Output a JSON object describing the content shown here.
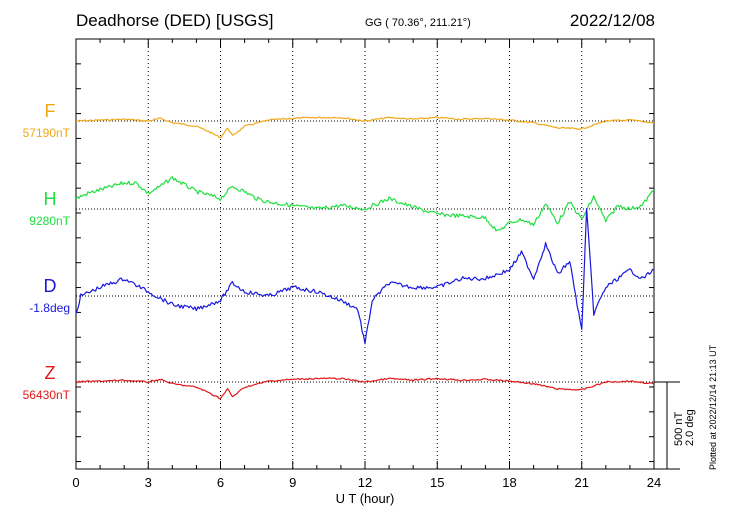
{
  "header": {
    "station": "Deadhorse (DED)  [USGS]",
    "coords": "GG ( 70.36°, 211.21°)",
    "date": "2022/12/08"
  },
  "plotted_note": "Plotted at 2022/12/14 21:13 UT",
  "scale": {
    "nt": "500 nT",
    "deg": "2.0 deg"
  },
  "chart_data": {
    "type": "line",
    "xlabel": "U T (hour)",
    "xlim": [
      0,
      24
    ],
    "xticks": [
      0,
      3,
      6,
      9,
      12,
      15,
      18,
      21,
      24
    ],
    "tick_labels": [
      "0",
      "3",
      "6",
      "9",
      "12",
      "15",
      "18",
      "21",
      "24"
    ],
    "grid": "vertical dotted lines every 3 hours",
    "scale_bar": {
      "nT": 500,
      "deg": 2.0
    },
    "series": [
      {
        "name": "F",
        "baseline": "57190nT",
        "color": "#f0a818",
        "x": [
          0,
          1,
          2,
          3,
          3.5,
          4,
          5,
          5.5,
          6,
          6.3,
          6.5,
          7,
          8,
          9,
          10,
          11,
          12,
          13,
          14,
          15,
          16,
          17,
          18,
          19,
          20,
          21,
          22,
          23,
          24
        ],
        "y": [
          0,
          5,
          10,
          0,
          15,
          -10,
          -30,
          -60,
          -95,
          -40,
          -85,
          -30,
          5,
          15,
          20,
          20,
          0,
          20,
          10,
          20,
          10,
          15,
          5,
          -10,
          -40,
          -45,
          0,
          5,
          -10
        ]
      },
      {
        "name": "H",
        "baseline": "9280nT",
        "color": "#20e040",
        "x": [
          0,
          0.5,
          1,
          1.5,
          2,
          2.5,
          3,
          3.5,
          4,
          4.5,
          5,
          5.5,
          6,
          6.5,
          7,
          7.5,
          8,
          9,
          10,
          11,
          12,
          13,
          14,
          15,
          16,
          17,
          17.5,
          18,
          18.5,
          19,
          19.5,
          20,
          20.5,
          21,
          21.5,
          22,
          22.5,
          23,
          23.5,
          24
        ],
        "y": [
          60,
          90,
          110,
          130,
          150,
          150,
          90,
          130,
          180,
          140,
          100,
          80,
          60,
          130,
          100,
          60,
          40,
          20,
          0,
          20,
          0,
          60,
          10,
          -30,
          -40,
          -50,
          -130,
          -80,
          -60,
          -90,
          30,
          -80,
          40,
          -60,
          70,
          -70,
          20,
          0,
          20,
          110
        ]
      },
      {
        "name": "D",
        "baseline": "-1.8deg",
        "color": "#1818e0",
        "x": [
          0,
          0.2,
          1,
          2,
          3,
          4,
          5,
          6,
          6.5,
          7,
          8,
          9,
          10,
          11,
          11.7,
          12,
          12.3,
          13,
          14,
          15,
          16,
          17,
          18,
          18.5,
          19,
          19.5,
          20,
          20.5,
          21,
          21.2,
          21.5,
          22,
          23,
          23.5,
          24
        ],
        "y": [
          -0.4,
          0,
          0.2,
          0.4,
          0.1,
          -0.2,
          -0.3,
          -0.1,
          0.3,
          0.1,
          0,
          0.2,
          0.1,
          -0.1,
          -0.3,
          -1.1,
          -0.1,
          0.3,
          0.2,
          0.2,
          0.4,
          0.4,
          0.6,
          1.0,
          0.4,
          1.2,
          0.5,
          0.8,
          -0.8,
          2.0,
          -0.4,
          0.2,
          0.6,
          0.4,
          0.6
        ]
      },
      {
        "name": "Z",
        "baseline": "56430nT",
        "color": "#e01818",
        "x": [
          0,
          1,
          2,
          3,
          3.5,
          4,
          5,
          5.5,
          6,
          6.3,
          6.5,
          7,
          8,
          9,
          10,
          11,
          12,
          13,
          14,
          15,
          16,
          17,
          18,
          19,
          20,
          21,
          22,
          23,
          24
        ],
        "y": [
          0,
          5,
          10,
          0,
          15,
          -10,
          -30,
          -60,
          -95,
          -40,
          -85,
          -30,
          5,
          15,
          20,
          20,
          0,
          20,
          10,
          20,
          10,
          15,
          5,
          -10,
          -40,
          -45,
          0,
          5,
          -10
        ]
      }
    ]
  }
}
